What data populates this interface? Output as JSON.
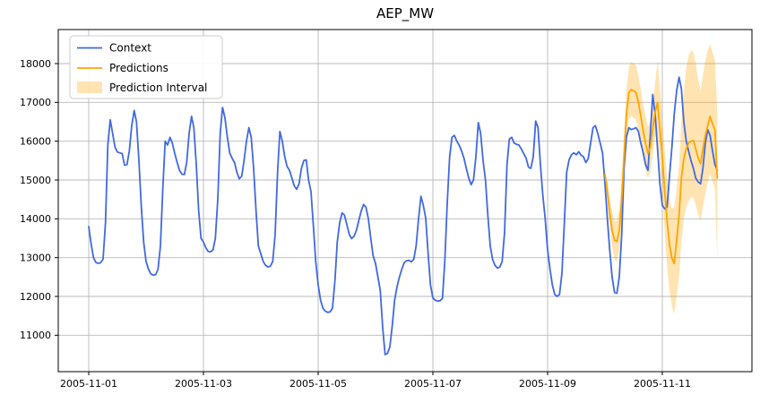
{
  "chart_data": {
    "type": "line",
    "title": "AEP_MW",
    "x_axis": {
      "start_time": "2005-11-01 00:00",
      "freq_hours": 1,
      "tick_hours": [
        0,
        48,
        96,
        144,
        192,
        240
      ],
      "tick_labels": [
        "2005-11-01",
        "2005-11-03",
        "2005-11-05",
        "2005-11-07",
        "2005-11-09",
        "2005-11-11"
      ]
    },
    "y_axis": {
      "ticks": [
        11000,
        12000,
        13000,
        14000,
        15000,
        16000,
        17000,
        18000
      ],
      "tick_labels": [
        "11000",
        "12000",
        "13000",
        "14000",
        "15000",
        "16000",
        "17000",
        "18000"
      ]
    },
    "grid": true,
    "legend_position": "upper left",
    "colors": {
      "context": "#4169e1",
      "predictions": "#ffa500",
      "interval_fill": "#ffa500",
      "grid": "#b8b8b8",
      "spine": "#000000"
    },
    "series": [
      {
        "name": "Context",
        "color": "#4169e1",
        "start_hour": 0,
        "values": [
          13800,
          13350,
          13000,
          12880,
          12850,
          12870,
          12960,
          13900,
          15900,
          16550,
          16200,
          15850,
          15720,
          15700,
          15680,
          15380,
          15400,
          15750,
          16400,
          16790,
          16500,
          15500,
          14300,
          13400,
          12900,
          12700,
          12580,
          12550,
          12560,
          12700,
          13300,
          14800,
          16000,
          15900,
          16100,
          15950,
          15680,
          15450,
          15250,
          15150,
          15140,
          15450,
          16200,
          16640,
          16350,
          15400,
          14200,
          13500,
          13400,
          13250,
          13160,
          13150,
          13200,
          13500,
          14500,
          16200,
          16870,
          16600,
          16100,
          15700,
          15560,
          15450,
          15200,
          15030,
          15100,
          15500,
          16000,
          16350,
          16100,
          15300,
          14200,
          13300,
          13100,
          12900,
          12800,
          12760,
          12780,
          12900,
          13600,
          15200,
          16250,
          16000,
          15600,
          15350,
          15250,
          15050,
          14850,
          14760,
          14900,
          15300,
          15500,
          15520,
          15000,
          14700,
          13800,
          12900,
          12300,
          11900,
          11700,
          11620,
          11590,
          11600,
          11700,
          12400,
          13400,
          13900,
          14150,
          14100,
          13850,
          13600,
          13490,
          13550,
          13700,
          13950,
          14200,
          14370,
          14300,
          14000,
          13500,
          13050,
          12850,
          12500,
          12150,
          11200,
          10500,
          10530,
          10700,
          11250,
          11900,
          12250,
          12500,
          12700,
          12870,
          12920,
          12930,
          12890,
          12960,
          13300,
          14000,
          14580,
          14350,
          14020,
          13100,
          12300,
          11960,
          11900,
          11880,
          11890,
          11950,
          12900,
          14400,
          15600,
          16100,
          16150,
          16000,
          15900,
          15750,
          15560,
          15300,
          15050,
          14880,
          15000,
          15600,
          16480,
          16200,
          15500,
          15000,
          14100,
          13300,
          12950,
          12800,
          12730,
          12760,
          12900,
          13650,
          15400,
          16050,
          16100,
          15950,
          15920,
          15900,
          15800,
          15680,
          15560,
          15330,
          15300,
          15600,
          16520,
          16350,
          15400,
          14600,
          14000,
          13200,
          12700,
          12300,
          12050,
          12000,
          12050,
          12600,
          13900,
          15200,
          15520,
          15650,
          15700,
          15650,
          15730,
          15640,
          15600,
          15450,
          15550,
          15950,
          16350,
          16400,
          16200,
          15950,
          15700,
          14900,
          14000,
          13200,
          12500,
          12100,
          12080,
          12500,
          13600,
          15300,
          16100,
          16350,
          16300,
          16320,
          16350,
          16250,
          15950,
          15700,
          15400,
          15250,
          16200,
          17200,
          16700,
          15800,
          14900,
          14350,
          14260,
          14300,
          15100,
          15850,
          16700,
          17300,
          17650,
          17350,
          16500,
          16000,
          15750,
          15500,
          15300,
          15050,
          14950,
          14900,
          15300,
          15950,
          16300,
          16150,
          15750,
          15400,
          15250
        ]
      },
      {
        "name": "Predictions",
        "color": "#ffa500",
        "start_hour": 216,
        "values": [
          15150,
          14700,
          14150,
          13700,
          13450,
          13420,
          13700,
          14500,
          15600,
          16700,
          17250,
          17330,
          17300,
          17250,
          17000,
          16650,
          16250,
          15950,
          15680,
          15850,
          16300,
          16750,
          17000,
          16300,
          15600,
          14700,
          13950,
          13350,
          12980,
          12850,
          13450,
          14100,
          15050,
          15550,
          15800,
          15950,
          16000,
          16020,
          15800,
          15570,
          15420,
          15800,
          16150,
          16400,
          16640,
          16450,
          16300,
          15050
        ]
      }
    ],
    "interval": {
      "name": "Prediction Interval",
      "color": "#ffa500",
      "opacity": 0.3,
      "start_hour": 216,
      "lower": [
        15050,
        14450,
        13800,
        13250,
        12950,
        12900,
        13200,
        13950,
        15000,
        16000,
        16550,
        16650,
        16600,
        16550,
        16300,
        15950,
        15550,
        15250,
        15050,
        15200,
        15650,
        16100,
        16200,
        15400,
        14700,
        13650,
        12800,
        12150,
        11750,
        11550,
        12000,
        12500,
        13400,
        14000,
        14300,
        14450,
        14550,
        14550,
        14350,
        14100,
        13950,
        14300,
        14650,
        14950,
        15150,
        14950,
        14800,
        12900
      ],
      "upper": [
        15250,
        14950,
        14550,
        14200,
        13950,
        13950,
        14250,
        15100,
        16200,
        17350,
        17900,
        18050,
        18000,
        17950,
        17700,
        17350,
        16950,
        16650,
        16350,
        16550,
        17000,
        17500,
        18100,
        17400,
        16600,
        15800,
        15100,
        14550,
        14250,
        14300,
        14800,
        15400,
        16500,
        17300,
        17900,
        18200,
        18350,
        18300,
        18000,
        17600,
        17300,
        17700,
        18100,
        18350,
        18500,
        18300,
        18100,
        16800
      ]
    }
  }
}
